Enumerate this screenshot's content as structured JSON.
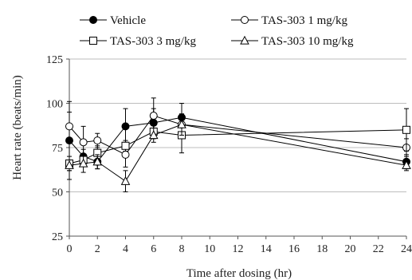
{
  "chart_data": {
    "type": "line",
    "xlabel": "Time  after  dosing  (hr)",
    "ylabel": "Heart  rate  (beats/min)",
    "xlim": [
      0,
      24
    ],
    "ylim": [
      25,
      125
    ],
    "xticks": [
      0,
      2,
      4,
      6,
      8,
      10,
      12,
      14,
      16,
      18,
      20,
      22,
      24
    ],
    "yticks": [
      25,
      50,
      75,
      100,
      125
    ],
    "grid": "horizontal",
    "legend_position": "top",
    "series": [
      {
        "name": "Vehicle",
        "marker": "filled-circle",
        "x": [
          0,
          1,
          2,
          4,
          6,
          8,
          24
        ],
        "y": [
          79,
          70,
          67,
          87,
          89,
          92,
          67
        ],
        "err": [
          22,
          4,
          4,
          10,
          8,
          8,
          4
        ]
      },
      {
        "name": "TAS-303 1 mg/kg",
        "marker": "open-circle",
        "x": [
          0,
          1,
          2,
          4,
          6,
          8,
          24
        ],
        "y": [
          87,
          78,
          79,
          71,
          93,
          88,
          75
        ],
        "err": [
          8,
          9,
          4,
          7,
          10,
          6,
          5
        ]
      },
      {
        "name": "TAS-303 3 mg/kg",
        "marker": "open-square",
        "x": [
          0,
          1,
          2,
          4,
          6,
          8,
          24
        ],
        "y": [
          66,
          68,
          72,
          76,
          84,
          82,
          85
        ],
        "err": [
          4,
          3,
          4,
          3,
          4,
          10,
          12
        ]
      },
      {
        "name": "TAS-303 10 mg/kg",
        "marker": "open-triangle",
        "x": [
          0,
          1,
          2,
          4,
          6,
          8,
          24
        ],
        "y": [
          65,
          66,
          67,
          56,
          82,
          88,
          65
        ],
        "err": [
          3,
          5,
          4,
          6,
          4,
          6,
          3
        ]
      }
    ]
  }
}
